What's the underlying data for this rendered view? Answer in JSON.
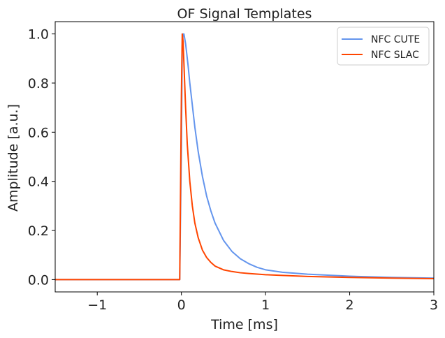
{
  "chart_data": {
    "type": "line",
    "title": "OF Signal Templates",
    "xlabel": "Time [ms]",
    "ylabel": "Amplitude [a.u.]",
    "xlim": [
      -1.5,
      3.0
    ],
    "ylim": [
      -0.05,
      1.05
    ],
    "xticks": [
      -1,
      0,
      1,
      2,
      3
    ],
    "xtick_labels": [
      "−1",
      "0",
      "1",
      "2",
      "3"
    ],
    "yticks": [
      0.0,
      0.2,
      0.4,
      0.6,
      0.8,
      1.0
    ],
    "ytick_labels": [
      "0.0",
      "0.2",
      "0.4",
      "0.6",
      "0.8",
      "1.0"
    ],
    "grid": false,
    "legend_position": "top-right",
    "series": [
      {
        "name": "NFC CUTE",
        "color": "#6495ED",
        "x": [
          -1.5,
          -0.02,
          0.0,
          0.01,
          0.02,
          0.03,
          0.05,
          0.08,
          0.1,
          0.13,
          0.16,
          0.2,
          0.25,
          0.3,
          0.35,
          0.4,
          0.5,
          0.6,
          0.7,
          0.8,
          0.9,
          1.0,
          1.2,
          1.5,
          2.0,
          2.5,
          3.0
        ],
        "y": [
          0.0,
          0.0,
          0.55,
          0.95,
          1.0,
          1.0,
          0.96,
          0.87,
          0.8,
          0.71,
          0.62,
          0.52,
          0.42,
          0.34,
          0.28,
          0.23,
          0.16,
          0.115,
          0.085,
          0.065,
          0.05,
          0.04,
          0.03,
          0.022,
          0.014,
          0.009,
          0.006
        ]
      },
      {
        "name": "NFC SLAC",
        "color": "#FF4500",
        "x": [
          -1.5,
          -0.02,
          0.0,
          0.01,
          0.02,
          0.03,
          0.05,
          0.07,
          0.1,
          0.13,
          0.16,
          0.2,
          0.25,
          0.3,
          0.35,
          0.4,
          0.5,
          0.6,
          0.7,
          0.8,
          1.0,
          1.2,
          1.5,
          2.0,
          2.5,
          3.0
        ],
        "y": [
          0.0,
          0.0,
          0.75,
          1.0,
          0.97,
          0.88,
          0.7,
          0.55,
          0.4,
          0.3,
          0.23,
          0.17,
          0.12,
          0.09,
          0.07,
          0.055,
          0.04,
          0.033,
          0.028,
          0.025,
          0.02,
          0.017,
          0.013,
          0.009,
          0.006,
          0.004
        ]
      }
    ]
  }
}
